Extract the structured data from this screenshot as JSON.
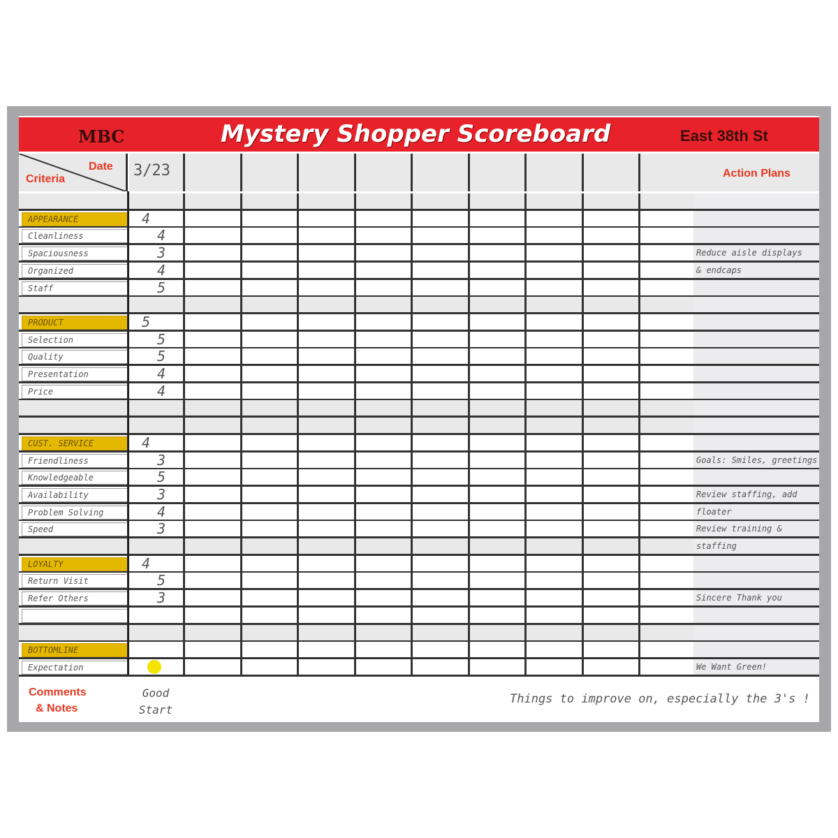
{
  "header": {
    "brand": "MBC",
    "title": "Mystery Shopper Scoreboard",
    "store": "East 38th St"
  },
  "columns": {
    "date_label": "Date",
    "criteria_label": "Criteria",
    "first_date": "3/23",
    "action_plans_label": "Action Plans"
  },
  "colors": {
    "header_red": "#e8222a",
    "category_yellow": "#e5b800",
    "dot_yellow": "#f5e400"
  },
  "rows": [
    {
      "label": "",
      "type": "blank",
      "score": "",
      "action": ""
    },
    {
      "label": "Appearance",
      "type": "cat",
      "score": "4",
      "action": ""
    },
    {
      "label": "Cleanliness",
      "type": "item",
      "score": "4",
      "action": ""
    },
    {
      "label": "Spaciousness",
      "type": "item",
      "score": "3",
      "action": "Reduce aisle displays"
    },
    {
      "label": "Organized",
      "type": "item",
      "score": "4",
      "action": "& endcaps"
    },
    {
      "label": "Staff",
      "type": "item",
      "score": "5",
      "action": ""
    },
    {
      "label": "",
      "type": "blank",
      "score": "",
      "action": ""
    },
    {
      "label": "Product",
      "type": "cat",
      "score": "5",
      "action": ""
    },
    {
      "label": "Selection",
      "type": "item",
      "score": "5",
      "action": ""
    },
    {
      "label": "Quality",
      "type": "item",
      "score": "5",
      "action": ""
    },
    {
      "label": "Presentation",
      "type": "item",
      "score": "4",
      "action": ""
    },
    {
      "label": "Price",
      "type": "item",
      "score": "4",
      "action": ""
    },
    {
      "label": "",
      "type": "blank",
      "score": "",
      "action": ""
    },
    {
      "label": "",
      "type": "blank",
      "score": "",
      "action": ""
    },
    {
      "label": "Cust. Service",
      "type": "cat",
      "score": "4",
      "action": ""
    },
    {
      "label": "Friendliness",
      "type": "item",
      "score": "3",
      "action": "Goals: Smiles, greetings"
    },
    {
      "label": "Knowledgeable",
      "type": "item",
      "score": "5",
      "action": ""
    },
    {
      "label": "Availability",
      "type": "item",
      "score": "3",
      "action": "Review staffing, add"
    },
    {
      "label": "Problem Solving",
      "type": "item",
      "score": "4",
      "action": "floater"
    },
    {
      "label": "Speed",
      "type": "item",
      "score": "3",
      "action": "Review training &"
    },
    {
      "label": "",
      "type": "blank",
      "score": "",
      "action": "staffing"
    },
    {
      "label": "Loyalty",
      "type": "cat",
      "score": "4",
      "action": ""
    },
    {
      "label": "Return Visit",
      "type": "item",
      "score": "5",
      "action": ""
    },
    {
      "label": "Refer Others",
      "type": "item",
      "score": "3",
      "action": "Sincere Thank you"
    },
    {
      "label": "",
      "type": "item",
      "score": "",
      "action": ""
    },
    {
      "label": "",
      "type": "blank",
      "score": "",
      "action": ""
    },
    {
      "label": "Bottomline",
      "type": "cat",
      "score": "",
      "action": ""
    },
    {
      "label": "Expectation",
      "type": "item",
      "score": "",
      "dot": "yellow",
      "action": "We Want Green!"
    }
  ],
  "notes": {
    "label_line1": "Comments",
    "label_line2": "& Notes",
    "first_note": "Good Start",
    "comment": "Things to improve on, especially the 3's !"
  }
}
